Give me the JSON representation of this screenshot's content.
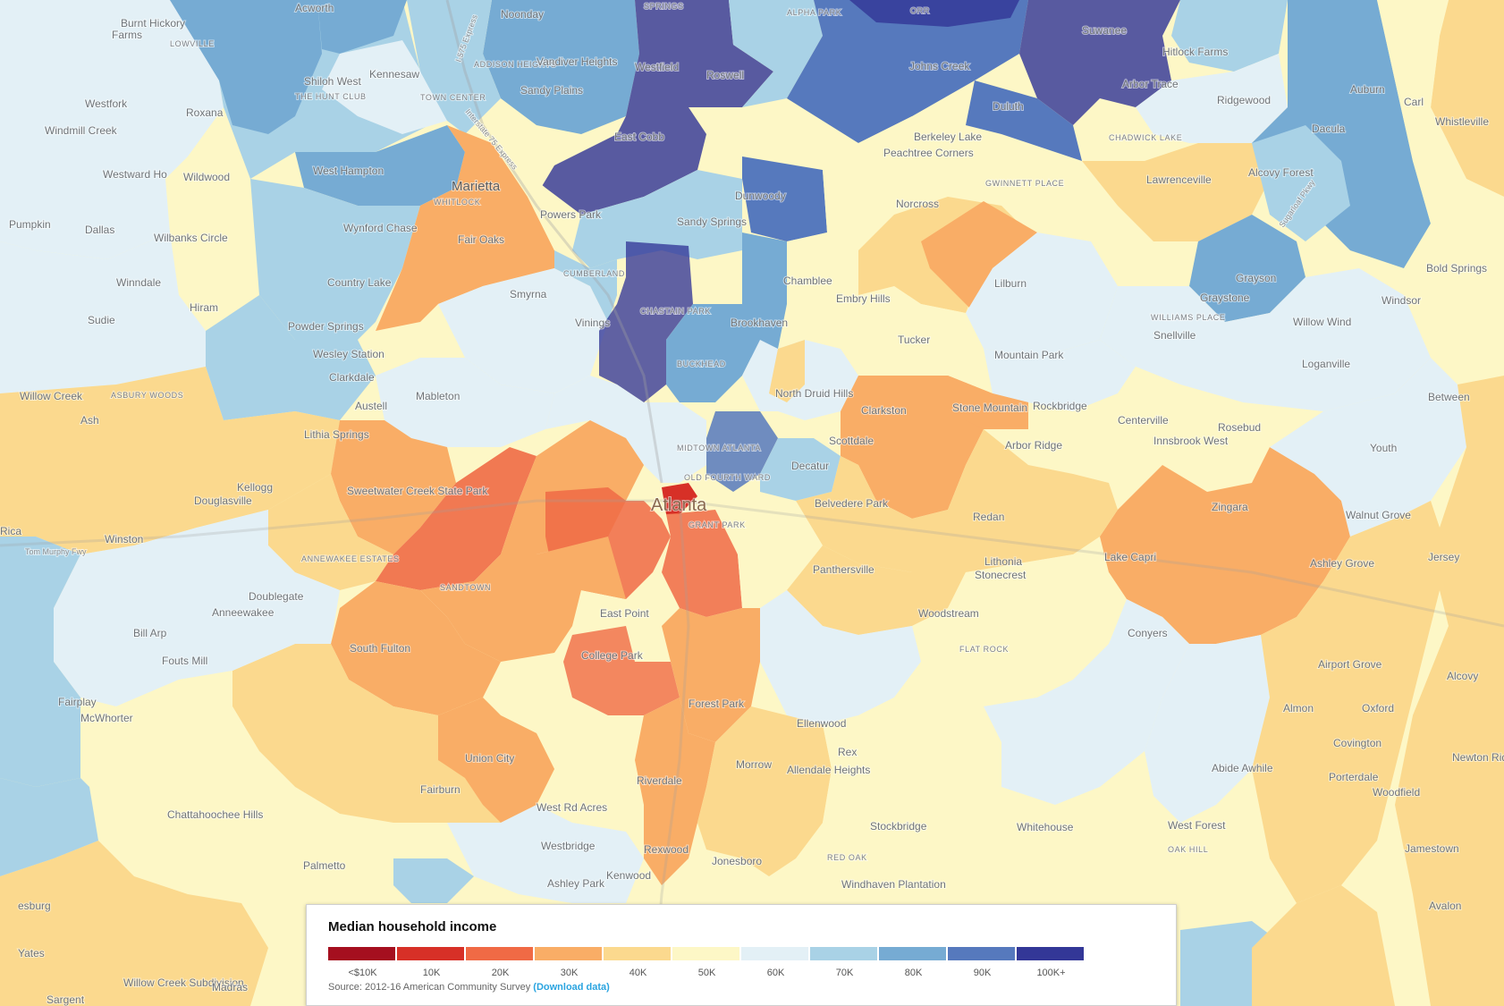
{
  "colors": {
    "lt10k": "#a50f1f",
    "10k": "#d73027",
    "20k": "#f06a45",
    "30k": "#f9ad66",
    "40k": "#fbd98e",
    "50k": "#fdf7c6",
    "60k": "#e3f0f6",
    "70k": "#a9d2e6",
    "80k": "#76abd3",
    "90k": "#5679bd",
    "100k": "#333797"
  },
  "legend": {
    "title": "Median household income",
    "bins": [
      {
        "label": "<$10K",
        "color": "#a50f1f"
      },
      {
        "label": "10K",
        "color": "#d73027"
      },
      {
        "label": "20K",
        "color": "#f06a45"
      },
      {
        "label": "30K",
        "color": "#f9ad66"
      },
      {
        "label": "40K",
        "color": "#fbd98e"
      },
      {
        "label": "50K",
        "color": "#fdf7c6"
      },
      {
        "label": "60K",
        "color": "#e3f0f6"
      },
      {
        "label": "70K",
        "color": "#a9d2e6"
      },
      {
        "label": "80K",
        "color": "#76abd3"
      },
      {
        "label": "90K",
        "color": "#5679bd"
      },
      {
        "label": "100K+",
        "color": "#333797"
      }
    ],
    "source": "Source: 2012-16 American Community Survey",
    "link": "(Download data)"
  },
  "places": {
    "acworth": "Acworth",
    "noonday": "Noonday",
    "burnt_hickory": "Burnt Hickory",
    "farms": "Farms",
    "lowville": "LOWVILLE",
    "springs": "SPRINGS",
    "alpha_park": "ALPHA PARK",
    "orr": "ORR",
    "suwanee": "Suwanee",
    "hitlock_farms": "Hitlock Farms",
    "addison_heights": "ADDISON HEIGHTS",
    "vandiver_heights": "Vandiver Heights",
    "kennesaw": "Kennesaw",
    "shiloh_west": "Shiloh West",
    "the_hunt_club": "THE HUNT CLUB",
    "town_center": "TOWN CENTER",
    "sandy_plains": "Sandy Plains",
    "westfield": "Westfield",
    "roswell": "Roswell",
    "johns_creek": "Johns Creek",
    "arbor_trace": "Arbor Trace",
    "ridgewood": "Ridgewood",
    "auburn": "Auburn",
    "carl": "Carl",
    "whistleville": "Whistleville",
    "westfork": "Westfork",
    "roxana": "Roxana",
    "windmill_creek": "Windmill Creek",
    "east_cobb": "East Cobb",
    "duluth": "Duluth",
    "berkeley_lake": "Berkeley Lake",
    "chadwick_lake": "CHADWICK LAKE",
    "dacula": "Dacula",
    "westward_ho": "Westward Ho",
    "wildwood": "Wildwood",
    "west_hampton": "West Hampton",
    "marietta": "Marietta",
    "whitlock": "WHITLOCK",
    "peachtree_corners": "Peachtree Corners",
    "gwinnett_place": "GWINNETT PLACE",
    "alcovy_forest": "Alcovy Forest",
    "lawrenceville": "Lawrenceville",
    "pumpkin": "Pumpkin",
    "dallas": "Dallas",
    "wilbanks_circle": "Wilbanks Circle",
    "wynford_chase": "Wynford Chase",
    "powers_park": "Powers Park",
    "dunwoody": "Dunwoody",
    "norcross": "Norcross",
    "fair_oaks": "Fair Oaks",
    "sandy_springs": "Sandy Springs",
    "winndale": "Winndale",
    "country_lake": "Country Lake",
    "cumberland": "CUMBERLAND",
    "chamblee": "Chamblee",
    "lilburn": "Lilburn",
    "grayson": "Grayson",
    "bold_springs": "Bold Springs",
    "sudie": "Sudie",
    "hiram": "Hiram",
    "smyrna": "Smyrna",
    "chastain_park": "CHASTAIN PARK",
    "embry_hills": "Embry Hills",
    "graystone": "Graystone",
    "windsor": "Windsor",
    "williams_place": "WILLIAMS PLACE",
    "powder_springs": "Powder Springs",
    "vinings": "Vinings",
    "brookhaven": "Brookhaven",
    "snellville": "Snellville",
    "willow_wind": "Willow Wind",
    "wesley_station": "Wesley Station",
    "buckhead": "BUCKHEAD",
    "tucker": "Tucker",
    "mountain_park": "Mountain Park",
    "loganville": "Loganville",
    "clarkdale": "Clarkdale",
    "willow_creek": "Willow Creek",
    "asbury_woods": "ASBURY WOODS",
    "mableton": "Mableton",
    "north_druid_hills": "North Druid Hills",
    "rockbridge": "Rockbridge",
    "between": "Between",
    "ash": "Ash",
    "austell": "Austell",
    "clarkston": "Clarkston",
    "stone_mountain": "Stone Mountain",
    "centerville": "Centerville",
    "rosebud": "Rosebud",
    "lithia_springs": "Lithia Springs",
    "midtown_atlanta": "MIDTOWN ATLANTA",
    "scottdale": "Scottdale",
    "arbor_ridge": "Arbor Ridge",
    "innsbrook_west": "Innsbrook West",
    "youth": "Youth",
    "decatur": "Decatur",
    "kellogg": "Kellogg",
    "douglasville": "Douglasville",
    "sweetwater_creek": "Sweetwater Creek State Park",
    "old_fourth_ward": "OLD FOURTH WARD",
    "atlanta": "Atlanta",
    "zingara": "Zingara",
    "grant_park": "GRANT PARK",
    "belvedere_park": "Belvedere Park",
    "redan": "Redan",
    "walnut_grove": "Walnut Grove",
    "rica": "Rica",
    "winston": "Winston",
    "tom_murphy_fwy": "Tom Murphy Fwy",
    "annewakee_estates": "ANNEWAKEE ESTATES",
    "lithonia": "Lithonia",
    "lake_capri": "Lake Capri",
    "ashley_grove": "Ashley Grove",
    "jersey": "Jersey",
    "panthersville": "Panthersville",
    "stonecrest": "Stonecrest",
    "sandtown": "SANDTOWN",
    "doublegate": "Doublegate",
    "anneewakee": "Anneewakee",
    "woodstream": "Woodstream",
    "east_point": "East Point",
    "conyers": "Conyers",
    "bill_arp": "Bill Arp",
    "south_fulton": "South Fulton",
    "flat_rock": "FLAT ROCK",
    "college_park": "College Park",
    "fouts_mill": "Fouts Mill",
    "airport_grove": "Airport Grove",
    "alcovy": "Alcovy",
    "fairplay": "Fairplay",
    "forest_park": "Forest Park",
    "almon": "Almon",
    "oxford": "Oxford",
    "mcwhorter": "McWhorter",
    "ellenwood": "Ellenwood",
    "covington": "Covington",
    "rex": "Rex",
    "union_city": "Union City",
    "morrow": "Morrow",
    "allendale_heights": "Allendale Heights",
    "abide_awhile": "Abide Awhile",
    "newton_ridge": "Newton Ridge",
    "porterdale": "Porterdale",
    "riverdale": "Riverdale",
    "fairburn": "Fairburn",
    "woodfield": "Woodfield",
    "west_rd_acres": "West Rd Acres",
    "chattahoochee_hills": "Chattahoochee Hills",
    "stockbridge": "Stockbridge",
    "whitehouse": "Whitehouse",
    "west_forest": "West Forest",
    "westbridge": "Westbridge",
    "rexwood": "Rexwood",
    "oak_hill": "OAK HILL",
    "jonesboro": "Jonesboro",
    "red_oak": "RED OAK",
    "jamestown": "Jamestown",
    "palmetto": "Palmetto",
    "kenwood": "Kenwood",
    "ashley_park": "Ashley Park",
    "windhaven_plantation": "Windhaven Plantation",
    "avalon": "Avalon",
    "yates": "Yates",
    "willow_creek_subdivision": "Willow Creek Subdivision",
    "madras": "Madras",
    "sargent": "Sargent",
    "resburg": "esburg",
    "i575_express": "I-575 Express",
    "i75_express": "Interstate 75 Express",
    "sugarloaf_pkwy": "Sugarloaf Pkwy"
  }
}
